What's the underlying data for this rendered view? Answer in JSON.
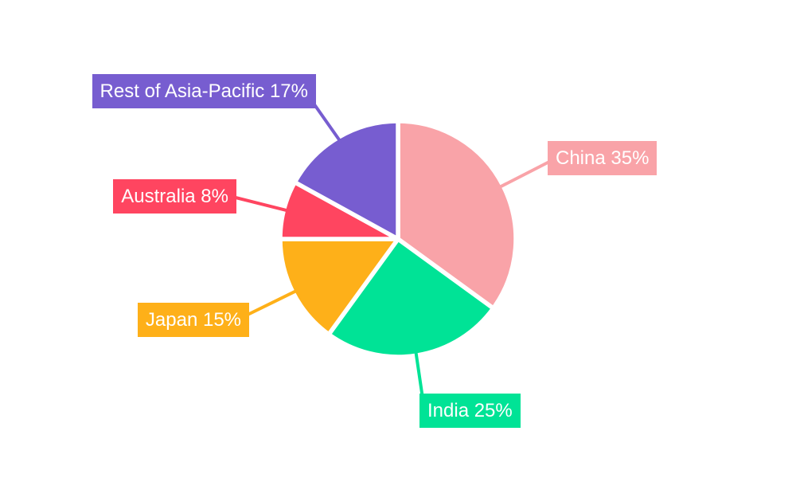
{
  "chart_data": {
    "type": "pie",
    "title": "",
    "categories": [
      "China",
      "India",
      "Japan",
      "Australia",
      "Rest of Asia-Pacific"
    ],
    "values": [
      35,
      25,
      15,
      8,
      17
    ],
    "unit": "%",
    "labels": [
      "China 35%",
      "India 25%",
      "Japan 15%",
      "Australia 8%",
      "Rest of Asia-Pacific 17%"
    ],
    "colors": [
      "#F9A3A8",
      "#00E396",
      "#FEB019",
      "#FF4560",
      "#775DD0"
    ],
    "label_text_color": "#FFFFFF",
    "background_color": "#FFFFFF",
    "slice_border_color": "#FFFFFF",
    "start_angle_deg": 0,
    "direction": "clockwise",
    "legend_position": "none",
    "label_style": "external-boxes-with-leader-lines"
  }
}
